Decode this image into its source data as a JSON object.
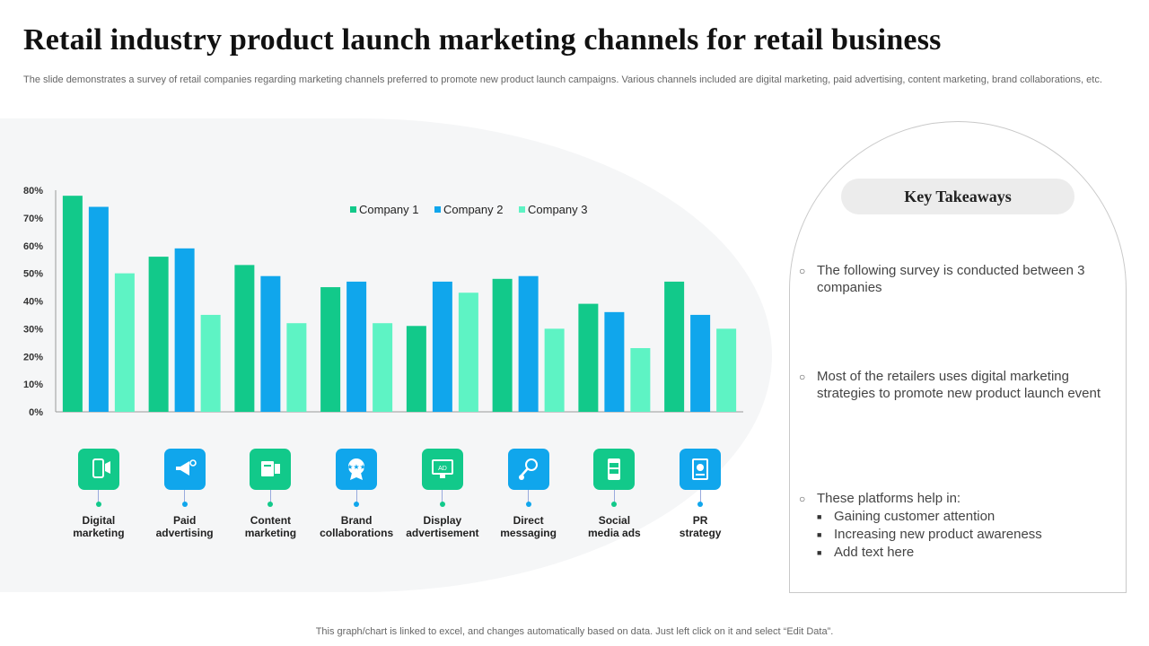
{
  "title": "Retail industry product launch marketing channels for retail business",
  "subtitle": "The slide demonstrates a survey of retail companies regarding marketing channels preferred to promote new product launch campaigns. Various channels included are digital marketing, paid advertising, content marketing, brand collaborations, etc.",
  "chart_data": {
    "type": "bar",
    "categories": [
      "Digital marketing",
      "Paid advertising",
      "Content marketing",
      "Brand collaborations",
      "Display advertisement",
      "Direct messaging",
      "Social media ads",
      "PR strategy"
    ],
    "series": [
      {
        "name": "Company 1",
        "color": "#12c98a",
        "values": [
          78,
          56,
          53,
          45,
          31,
          48,
          39,
          47
        ]
      },
      {
        "name": "Company 2",
        "color": "#10a6ec",
        "values": [
          74,
          59,
          49,
          47,
          47,
          49,
          36,
          35
        ]
      },
      {
        "name": "Company 3",
        "color": "#5ef3c4",
        "values": [
          50,
          35,
          32,
          32,
          43,
          30,
          23,
          30
        ]
      }
    ],
    "ylim": [
      0,
      80
    ],
    "yticks": [
      "0%",
      "10%",
      "20%",
      "30%",
      "40%",
      "50%",
      "60%",
      "70%",
      "80%"
    ],
    "legend_position": "top-center",
    "grid": false
  },
  "channels": [
    {
      "label": "Digital\nmarketing",
      "icon": "mobile-marketing-icon",
      "color": "#12c98a"
    },
    {
      "label": "Paid\nadvertising",
      "icon": "megaphone-icon",
      "color": "#10a6ec"
    },
    {
      "label": "Content\nmarketing",
      "icon": "content-icon",
      "color": "#12c98a"
    },
    {
      "label": "Brand\ncollaborations",
      "icon": "badge-icon",
      "color": "#10a6ec"
    },
    {
      "label": "Display\nadvertisement",
      "icon": "monitor-ad-icon",
      "color": "#12c98a"
    },
    {
      "label": "Direct\nmessaging",
      "icon": "search-message-icon",
      "color": "#10a6ec"
    },
    {
      "label": "Social\nmedia ads",
      "icon": "social-phone-icon",
      "color": "#12c98a"
    },
    {
      "label": "PR\nstrategy",
      "icon": "document-icon",
      "color": "#10a6ec"
    }
  ],
  "takeaways": {
    "heading": "Key Takeaways",
    "items": [
      "The following survey  is conducted between 3 companies",
      "Most of the retailers uses digital marketing strategies to promote new product launch event",
      "These platforms help in:"
    ],
    "subitems": [
      "Gaining customer attention",
      "Increasing new product awareness",
      "Add text here"
    ]
  },
  "footer": "This graph/chart is linked to excel,  and changes automatically based on data. Just left click on it and select “Edit Data”."
}
